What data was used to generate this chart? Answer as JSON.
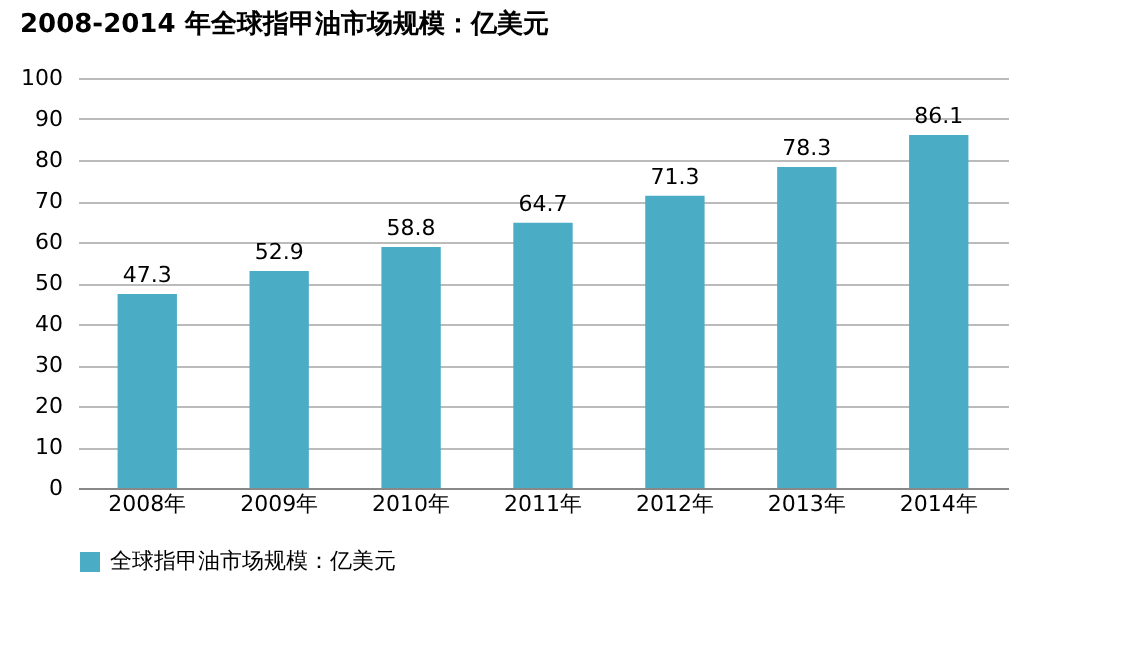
{
  "chart_data": {
    "type": "bar",
    "title": "2008-2014 年全球指甲油市场规模：亿美元",
    "categories": [
      "2008年",
      "2009年",
      "2010年",
      "2011年",
      "2012年",
      "2013年",
      "2014年"
    ],
    "series": [
      {
        "name": "全球指甲油市场规模：亿美元",
        "color": "#4bacc6",
        "values": [
          47.3,
          52.9,
          58.8,
          64.7,
          71.3,
          78.3,
          86.1
        ]
      }
    ],
    "ylim": [
      0,
      100
    ],
    "yticks": [
      0,
      10,
      20,
      30,
      40,
      50,
      60,
      70,
      80,
      90,
      100
    ],
    "grid": "y",
    "legend": "bottom",
    "data_labels": true
  }
}
